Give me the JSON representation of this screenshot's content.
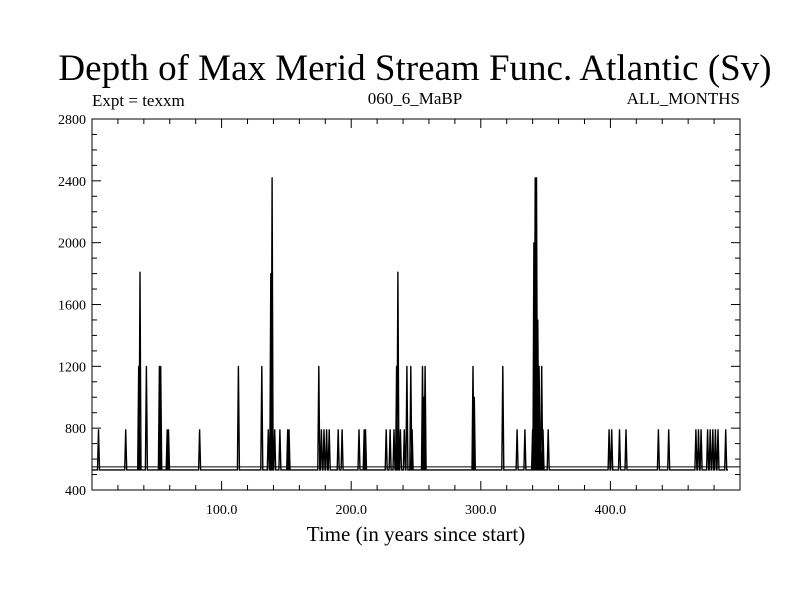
{
  "chart_data": {
    "type": "line",
    "title": "Depth of Max Merid Stream Func. Atlantic (Sv)",
    "subtitle_left": "Expt = texxm",
    "subtitle_center": "060_6_MaBP",
    "subtitle_right": "ALL_MONTHS",
    "xlabel": "Time (in years since start)",
    "ylabel": "",
    "xlim": [
      0,
      500
    ],
    "ylim": [
      400,
      2800
    ],
    "x_ticks": [
      100,
      200,
      300,
      400
    ],
    "x_tick_labels": [
      "100.0",
      "200.0",
      "300.0",
      "400.0"
    ],
    "y_ticks": [
      400,
      800,
      1200,
      1600,
      2000,
      2400,
      2800
    ],
    "y_tick_labels": [
      "400",
      "800",
      "1200",
      "1600",
      "2000",
      "2400",
      "2800"
    ],
    "grid": false,
    "reference_line": 550,
    "baseline": 530,
    "series": [
      {
        "spikes": [
          {
            "x": 5,
            "y": 790
          },
          {
            "x": 26,
            "y": 790
          },
          {
            "x": 36,
            "y": 1200
          },
          {
            "x": 37,
            "y": 1810
          },
          {
            "x": 42,
            "y": 1200
          },
          {
            "x": 52,
            "y": 1200
          },
          {
            "x": 53,
            "y": 1200
          },
          {
            "x": 58,
            "y": 790
          },
          {
            "x": 59,
            "y": 790
          },
          {
            "x": 83,
            "y": 790
          },
          {
            "x": 113,
            "y": 1200
          },
          {
            "x": 131,
            "y": 1200
          },
          {
            "x": 136,
            "y": 790
          },
          {
            "x": 138,
            "y": 1800
          },
          {
            "x": 139,
            "y": 2420
          },
          {
            "x": 141,
            "y": 790
          },
          {
            "x": 145,
            "y": 790
          },
          {
            "x": 151,
            "y": 790
          },
          {
            "x": 152,
            "y": 790
          },
          {
            "x": 175,
            "y": 1200
          },
          {
            "x": 177,
            "y": 790
          },
          {
            "x": 179,
            "y": 790
          },
          {
            "x": 181,
            "y": 790
          },
          {
            "x": 183,
            "y": 790
          },
          {
            "x": 190,
            "y": 790
          },
          {
            "x": 193,
            "y": 790
          },
          {
            "x": 206,
            "y": 790
          },
          {
            "x": 210,
            "y": 790
          },
          {
            "x": 211,
            "y": 790
          },
          {
            "x": 227,
            "y": 790
          },
          {
            "x": 230,
            "y": 790
          },
          {
            "x": 233,
            "y": 790
          },
          {
            "x": 235,
            "y": 1200
          },
          {
            "x": 236,
            "y": 1810
          },
          {
            "x": 238,
            "y": 790
          },
          {
            "x": 241,
            "y": 790
          },
          {
            "x": 243,
            "y": 1200
          },
          {
            "x": 246,
            "y": 1200
          },
          {
            "x": 247,
            "y": 790
          },
          {
            "x": 255,
            "y": 1200
          },
          {
            "x": 256,
            "y": 1000
          },
          {
            "x": 257,
            "y": 1200
          },
          {
            "x": 294,
            "y": 1200
          },
          {
            "x": 295,
            "y": 1000
          },
          {
            "x": 317,
            "y": 1200
          },
          {
            "x": 328,
            "y": 790
          },
          {
            "x": 334,
            "y": 790
          },
          {
            "x": 340,
            "y": 790
          },
          {
            "x": 341,
            "y": 2000
          },
          {
            "x": 342,
            "y": 2420
          },
          {
            "x": 343,
            "y": 2420
          },
          {
            "x": 344,
            "y": 1500
          },
          {
            "x": 345,
            "y": 1200
          },
          {
            "x": 346,
            "y": 790
          },
          {
            "x": 347,
            "y": 1200
          },
          {
            "x": 348,
            "y": 790
          },
          {
            "x": 352,
            "y": 790
          },
          {
            "x": 399,
            "y": 790
          },
          {
            "x": 401,
            "y": 790
          },
          {
            "x": 407,
            "y": 790
          },
          {
            "x": 412,
            "y": 790
          },
          {
            "x": 437,
            "y": 790
          },
          {
            "x": 445,
            "y": 790
          },
          {
            "x": 466,
            "y": 790
          },
          {
            "x": 468,
            "y": 790
          },
          {
            "x": 470,
            "y": 790
          },
          {
            "x": 475,
            "y": 790
          },
          {
            "x": 477,
            "y": 790
          },
          {
            "x": 479,
            "y": 790
          },
          {
            "x": 481,
            "y": 790
          },
          {
            "x": 483,
            "y": 790
          },
          {
            "x": 489,
            "y": 790
          }
        ]
      }
    ]
  }
}
